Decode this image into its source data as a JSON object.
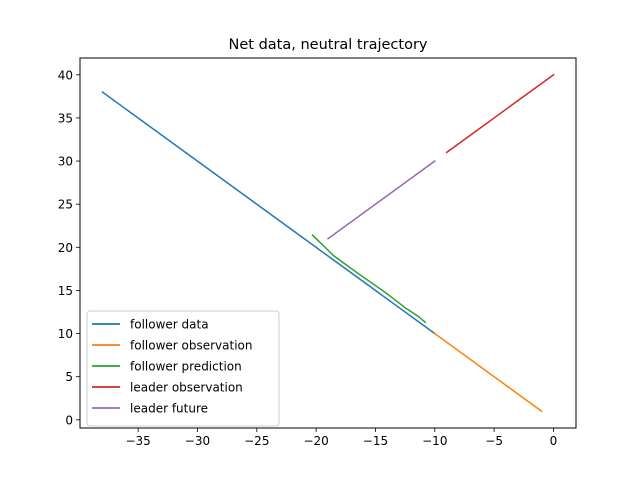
{
  "chart_data": {
    "type": "line",
    "title": "Net data, neutral trajectory",
    "xlabel": "",
    "ylabel": "",
    "xlim": [
      -39.9,
      1.9
    ],
    "ylim": [
      -0.95,
      41.95
    ],
    "x_ticks": [
      -35,
      -30,
      -25,
      -20,
      -15,
      -10,
      -5,
      0
    ],
    "x_tick_labels": [
      "−35",
      "−30",
      "−25",
      "−20",
      "−15",
      "−10",
      "−5",
      "0"
    ],
    "y_ticks": [
      0,
      5,
      10,
      15,
      20,
      25,
      30,
      35,
      40
    ],
    "y_tick_labels": [
      "0",
      "5",
      "10",
      "15",
      "20",
      "25",
      "30",
      "35",
      "40"
    ],
    "grid": false,
    "legend_position": "lower-left",
    "series": [
      {
        "name": "follower data",
        "color": "#1f77b4",
        "x": [
          -38,
          -10
        ],
        "y": [
          38,
          10
        ]
      },
      {
        "name": "follower observation",
        "color": "#ff7f0e",
        "x": [
          -10,
          -1
        ],
        "y": [
          10,
          1
        ]
      },
      {
        "name": "follower prediction",
        "color": "#2ca02c",
        "x": [
          -20.3,
          -19.1,
          -18.5,
          -16.5,
          -14.2,
          -12.5,
          -11.4,
          -10.8
        ],
        "y": [
          21.4,
          19.8,
          19.0,
          17.0,
          14.8,
          13.0,
          12.0,
          11.3
        ]
      },
      {
        "name": "leader observation",
        "color": "#d62728",
        "x": [
          -9,
          0
        ],
        "y": [
          31,
          40
        ]
      },
      {
        "name": "leader future",
        "color": "#9467bd",
        "x": [
          -19,
          -10
        ],
        "y": [
          21,
          30
        ]
      }
    ]
  }
}
